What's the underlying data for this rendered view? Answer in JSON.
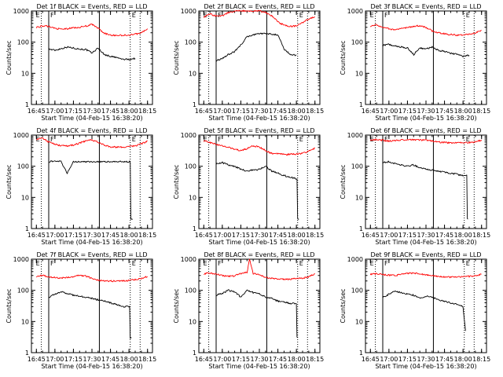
{
  "figure": {
    "ylabel": "Counts/sec",
    "xlabel": "Start Time (04-Feb-15 16:38:20)",
    "x_ticks": [
      "16:45",
      "17:00",
      "17:15",
      "17:30",
      "17:45",
      "18:00",
      "18:15"
    ],
    "y_ticks": [
      "1",
      "10",
      "100",
      "1000"
    ],
    "marker_labels": [
      "E",
      "F",
      "E"
    ],
    "colors": {
      "events": "#000000",
      "lld": "#ff0000",
      "background": "#ffffff"
    }
  },
  "chart_data": [
    {
      "type": "line",
      "title": "Det 1f BLACK = Events, RED = LLD",
      "xlabel": "Start Time (04-Feb-15 16:38:20)",
      "ylabel": "Counts/sec",
      "xlim": [
        "16:41",
        "18:19"
      ],
      "ylim": [
        1,
        1000
      ],
      "yscale": "log",
      "vlines": {
        "dotted": [
          "16:49",
          "18:01",
          "18:09"
        ],
        "solid": [
          "16:55",
          "17:36"
        ]
      },
      "series": [
        {
          "name": "Events",
          "color": "#000000",
          "x": [
            "16:55",
            "17:00",
            "17:05",
            "17:10",
            "17:15",
            "17:20",
            "17:25",
            "17:30",
            "17:35",
            "17:40",
            "17:45",
            "17:50",
            "17:55",
            "18:00",
            "18:05"
          ],
          "y": [
            60,
            55,
            62,
            70,
            65,
            60,
            58,
            45,
            65,
            40,
            35,
            32,
            28,
            28,
            30
          ]
        },
        {
          "name": "LLD",
          "color": "#ff0000",
          "x": [
            "16:45",
            "16:50",
            "16:55",
            "17:00",
            "17:05",
            "17:10",
            "17:15",
            "17:20",
            "17:25",
            "17:30",
            "17:35",
            "17:40",
            "17:45",
            "17:50",
            "17:55",
            "18:00",
            "18:05",
            "18:10",
            "18:15"
          ],
          "y": [
            300,
            330,
            320,
            280,
            260,
            270,
            290,
            300,
            330,
            370,
            280,
            190,
            170,
            165,
            165,
            170,
            180,
            200,
            270
          ]
        }
      ]
    },
    {
      "type": "line",
      "title": "Det 2f BLACK = Events, RED = LLD",
      "xlabel": "Start Time (04-Feb-15 16:38:20)",
      "ylabel": "Counts/sec",
      "xlim": [
        "16:41",
        "18:19"
      ],
      "ylim": [
        1,
        1000
      ],
      "yscale": "log",
      "vlines": {
        "dotted": [
          "16:49",
          "18:01",
          "18:09"
        ],
        "solid": [
          "16:55",
          "17:36"
        ]
      },
      "series": [
        {
          "name": "Events",
          "color": "#000000",
          "x": [
            "16:55",
            "17:00",
            "17:05",
            "17:10",
            "17:15",
            "17:20",
            "17:25",
            "17:30",
            "17:35",
            "17:40",
            "17:45",
            "17:50",
            "17:55",
            "18:00"
          ],
          "y": [
            25,
            30,
            40,
            50,
            80,
            150,
            170,
            190,
            190,
            180,
            170,
            60,
            40,
            38
          ]
        },
        {
          "name": "LLD",
          "color": "#ff0000",
          "x": [
            "16:45",
            "16:50",
            "16:55",
            "17:00",
            "17:05",
            "17:10",
            "17:15",
            "17:20",
            "17:25",
            "17:30",
            "17:35",
            "17:40",
            "17:45",
            "17:50",
            "17:55",
            "18:00",
            "18:05",
            "18:10",
            "18:15"
          ],
          "y": [
            650,
            800,
            700,
            700,
            900,
            1000,
            1000,
            1000,
            1000,
            1000,
            900,
            700,
            450,
            350,
            320,
            330,
            420,
            550,
            650
          ]
        }
      ]
    },
    {
      "type": "line",
      "title": "Det 3f BLACK = Events, RED = LLD",
      "xlabel": "Start Time (04-Feb-15 16:38:20)",
      "ylabel": "Counts/sec",
      "xlim": [
        "16:41",
        "18:19"
      ],
      "ylim": [
        1,
        1000
      ],
      "yscale": "log",
      "vlines": {
        "dotted": [
          "16:49",
          "18:01",
          "18:09"
        ],
        "solid": [
          "16:55",
          "17:36"
        ]
      },
      "series": [
        {
          "name": "Events",
          "color": "#000000",
          "x": [
            "16:55",
            "17:00",
            "17:05",
            "17:10",
            "17:15",
            "17:20",
            "17:25",
            "17:30",
            "17:35",
            "17:40",
            "17:45",
            "17:50",
            "17:55",
            "18:00",
            "18:05"
          ],
          "y": [
            80,
            85,
            75,
            70,
            65,
            40,
            65,
            60,
            70,
            55,
            50,
            45,
            40,
            35,
            38
          ]
        },
        {
          "name": "LLD",
          "color": "#ff0000",
          "x": [
            "16:45",
            "16:50",
            "16:55",
            "17:00",
            "17:05",
            "17:10",
            "17:15",
            "17:20",
            "17:25",
            "17:30",
            "17:35",
            "17:40",
            "17:45",
            "17:50",
            "17:55",
            "18:00",
            "18:05",
            "18:10",
            "18:15"
          ],
          "y": [
            330,
            360,
            300,
            270,
            250,
            270,
            300,
            320,
            340,
            300,
            230,
            200,
            185,
            175,
            170,
            170,
            180,
            200,
            240
          ]
        }
      ]
    },
    {
      "type": "line",
      "title": "Det 4f BLACK = Events, RED = LLD",
      "xlabel": "Start Time (04-Feb-15 16:38:20)",
      "ylabel": "Counts/sec",
      "xlim": [
        "16:41",
        "18:19"
      ],
      "ylim": [
        1,
        1000
      ],
      "yscale": "log",
      "vlines": {
        "dotted": [
          "16:49",
          "18:01",
          "18:09"
        ],
        "solid": [
          "16:55",
          "17:36"
        ]
      },
      "series": [
        {
          "name": "Events",
          "color": "#000000",
          "x": [
            "16:55",
            "17:00",
            "17:05",
            "17:10",
            "17:15",
            "17:20",
            "17:25",
            "17:30",
            "17:35",
            "17:40",
            "17:45",
            "17:50",
            "17:55",
            "18:00",
            "18:03"
          ],
          "y": [
            140,
            145,
            140,
            60,
            140,
            140,
            140,
            140,
            140,
            140,
            140,
            140,
            140,
            140,
            2
          ]
        },
        {
          "name": "LLD",
          "color": "#ff0000",
          "x": [
            "16:45",
            "16:50",
            "16:55",
            "17:00",
            "17:05",
            "17:10",
            "17:15",
            "17:20",
            "17:25",
            "17:30",
            "17:35",
            "17:40",
            "17:45",
            "17:50",
            "17:55",
            "18:00",
            "18:05",
            "18:10",
            "18:15"
          ],
          "y": [
            750,
            800,
            600,
            500,
            460,
            450,
            480,
            550,
            650,
            700,
            600,
            470,
            420,
            410,
            420,
            430,
            450,
            520,
            650
          ]
        }
      ]
    },
    {
      "type": "line",
      "title": "Det 5f BLACK = Events, RED = LLD",
      "xlabel": "Start Time (04-Feb-15 16:38:20)",
      "ylabel": "Counts/sec",
      "xlim": [
        "16:41",
        "18:19"
      ],
      "ylim": [
        1,
        1000
      ],
      "yscale": "log",
      "vlines": {
        "dotted": [
          "16:49",
          "18:01",
          "18:09"
        ],
        "solid": [
          "16:55",
          "17:36"
        ]
      },
      "series": [
        {
          "name": "Events",
          "color": "#000000",
          "x": [
            "16:55",
            "17:00",
            "17:05",
            "17:10",
            "17:15",
            "17:20",
            "17:25",
            "17:30",
            "17:35",
            "17:40",
            "17:45",
            "17:50",
            "17:55",
            "18:00",
            "18:02"
          ],
          "y": [
            120,
            130,
            110,
            100,
            80,
            70,
            75,
            80,
            100,
            70,
            60,
            50,
            45,
            40,
            2
          ]
        },
        {
          "name": "LLD",
          "color": "#ff0000",
          "x": [
            "16:45",
            "16:50",
            "16:55",
            "17:00",
            "17:05",
            "17:10",
            "17:15",
            "17:20",
            "17:25",
            "17:30",
            "17:35",
            "17:40",
            "17:45",
            "17:50",
            "17:55",
            "18:00",
            "18:05",
            "18:10",
            "18:15"
          ],
          "y": [
            650,
            580,
            500,
            450,
            400,
            350,
            320,
            370,
            450,
            420,
            320,
            260,
            250,
            240,
            240,
            250,
            260,
            300,
            380
          ]
        }
      ]
    },
    {
      "type": "line",
      "title": "Det 6f BLACK = Events, RED = LLD",
      "xlabel": "Start Time (04-Feb-15 16:38:20)",
      "ylabel": "Counts/sec",
      "xlim": [
        "16:41",
        "18:19"
      ],
      "ylim": [
        1,
        1000
      ],
      "yscale": "log",
      "vlines": {
        "dotted": [
          "16:49",
          "18:01",
          "18:09"
        ],
        "solid": [
          "16:55",
          "17:36"
        ]
      },
      "series": [
        {
          "name": "Events",
          "color": "#000000",
          "x": [
            "16:55",
            "17:00",
            "17:05",
            "17:10",
            "17:15",
            "17:20",
            "17:25",
            "17:30",
            "17:35",
            "17:40",
            "17:45",
            "17:50",
            "17:55",
            "18:00",
            "18:03",
            "18:04"
          ],
          "y": [
            130,
            140,
            120,
            110,
            100,
            110,
            90,
            80,
            75,
            70,
            65,
            60,
            55,
            50,
            50,
            2
          ]
        },
        {
          "name": "LLD",
          "color": "#ff0000",
          "x": [
            "16:45",
            "16:50",
            "16:55",
            "17:00",
            "17:05",
            "17:10",
            "17:15",
            "17:20",
            "17:25",
            "17:30",
            "17:35",
            "17:40",
            "17:45",
            "17:50",
            "17:55",
            "18:00",
            "18:05",
            "18:10",
            "18:15"
          ],
          "y": [
            700,
            720,
            680,
            650,
            660,
            700,
            720,
            700,
            700,
            690,
            650,
            600,
            580,
            560,
            560,
            570,
            580,
            600,
            700
          ]
        }
      ]
    },
    {
      "type": "line",
      "title": "Det 7f BLACK = Events, RED = LLD",
      "xlabel": "Start Time (04-Feb-15 16:38:20)",
      "ylabel": "Counts/sec",
      "xlim": [
        "16:41",
        "18:19"
      ],
      "ylim": [
        1,
        1000
      ],
      "yscale": "log",
      "vlines": {
        "dotted": [
          "16:49",
          "18:01",
          "18:09"
        ],
        "solid": [
          "16:55",
          "17:36"
        ]
      },
      "series": [
        {
          "name": "Events",
          "color": "#000000",
          "x": [
            "16:55",
            "17:00",
            "17:05",
            "17:10",
            "17:15",
            "17:20",
            "17:25",
            "17:30",
            "17:35",
            "17:40",
            "17:45",
            "17:50",
            "17:55",
            "18:00",
            "18:02"
          ],
          "y": [
            60,
            75,
            90,
            80,
            70,
            65,
            60,
            55,
            50,
            45,
            40,
            35,
            30,
            30,
            3
          ]
        },
        {
          "name": "LLD",
          "color": "#ff0000",
          "x": [
            "16:45",
            "16:50",
            "16:55",
            "17:00",
            "17:05",
            "17:10",
            "17:15",
            "17:20",
            "17:25",
            "17:30",
            "17:35",
            "17:40",
            "17:45",
            "17:50",
            "17:55",
            "18:00",
            "18:05",
            "18:10",
            "18:15"
          ],
          "y": [
            280,
            300,
            270,
            260,
            250,
            260,
            280,
            300,
            290,
            240,
            210,
            200,
            200,
            195,
            200,
            210,
            220,
            240,
            280
          ]
        }
      ]
    },
    {
      "type": "line",
      "title": "Det 8f BLACK = Events, RED = LLD",
      "xlabel": "Start Time (04-Feb-15 16:38:20)",
      "ylabel": "Counts/sec",
      "xlim": [
        "16:41",
        "18:19"
      ],
      "ylim": [
        1,
        1000
      ],
      "yscale": "log",
      "vlines": {
        "dotted": [
          "16:49",
          "18:01",
          "18:09"
        ],
        "solid": [
          "16:55",
          "17:36"
        ]
      },
      "series": [
        {
          "name": "Events",
          "color": "#000000",
          "x": [
            "16:55",
            "17:00",
            "17:05",
            "17:10",
            "17:15",
            "17:20",
            "17:25",
            "17:30",
            "17:35",
            "17:40",
            "17:45",
            "17:50",
            "17:55",
            "18:00",
            "18:01"
          ],
          "y": [
            70,
            80,
            100,
            90,
            60,
            100,
            85,
            80,
            60,
            55,
            45,
            42,
            38,
            38,
            3
          ]
        },
        {
          "name": "LLD",
          "color": "#ff0000",
          "x": [
            "16:45",
            "16:50",
            "16:55",
            "17:00",
            "17:05",
            "17:10",
            "17:15",
            "17:20",
            "17:22",
            "17:25",
            "17:30",
            "17:35",
            "17:40",
            "17:45",
            "17:50",
            "17:55",
            "18:00",
            "18:05",
            "18:10",
            "18:15"
          ],
          "y": [
            340,
            360,
            330,
            300,
            280,
            290,
            350,
            380,
            1000,
            350,
            330,
            260,
            240,
            230,
            225,
            230,
            240,
            250,
            270,
            350
          ]
        }
      ]
    },
    {
      "type": "line",
      "title": "Det 9f BLACK = Events, RED = LLD",
      "xlabel": "Start Time (04-Feb-15 16:38:20)",
      "ylabel": "Counts/sec",
      "xlim": [
        "16:41",
        "18:19"
      ],
      "ylim": [
        1,
        1000
      ],
      "yscale": "log",
      "vlines": {
        "dotted": [
          "16:49",
          "18:01",
          "18:09"
        ],
        "solid": [
          "16:55",
          "17:36"
        ]
      },
      "series": [
        {
          "name": "Events",
          "color": "#000000",
          "x": [
            "16:55",
            "17:00",
            "17:05",
            "17:10",
            "17:15",
            "17:20",
            "17:25",
            "17:30",
            "17:35",
            "17:40",
            "17:45",
            "17:50",
            "17:55",
            "18:00",
            "18:02"
          ],
          "y": [
            60,
            75,
            95,
            85,
            75,
            70,
            55,
            65,
            60,
            50,
            45,
            40,
            35,
            30,
            5
          ]
        },
        {
          "name": "LLD",
          "color": "#ff0000",
          "x": [
            "16:45",
            "16:50",
            "16:55",
            "17:00",
            "17:05",
            "17:10",
            "17:15",
            "17:20",
            "17:25",
            "17:30",
            "17:35",
            "17:40",
            "17:45",
            "17:50",
            "17:55",
            "18:00",
            "18:05",
            "18:10",
            "18:15"
          ],
          "y": [
            330,
            340,
            320,
            310,
            300,
            320,
            350,
            360,
            340,
            310,
            290,
            280,
            270,
            265,
            265,
            270,
            280,
            290,
            330
          ]
        }
      ]
    }
  ]
}
